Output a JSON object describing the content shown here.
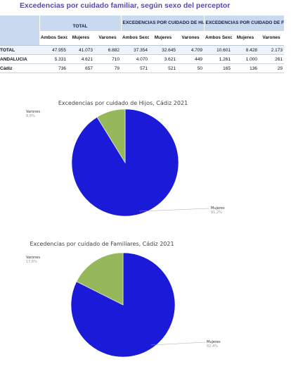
{
  "page_title": "Excedencias por cuidado familiar,  según sexo del perceptor",
  "table": {
    "groups": [
      "TOTAL",
      "EXCEDENCIAS POR CUIDADO DE HIJOS",
      "EXCEDENCIAS POR CUIDADO DE FAMILIARES"
    ],
    "subheaders": [
      "Ambos Sexos",
      "Mujeres",
      "Varones",
      "Ambos Sexos",
      "Mujeres",
      "Varones",
      "Ambos Sexos",
      "Mujeres",
      "Varones"
    ],
    "rows": [
      {
        "label": "TOTAL",
        "values": [
          "47.955",
          "41.073",
          "6.882",
          "37.354",
          "32.645",
          "4.709",
          "10.601",
          "8.428",
          "2.173"
        ]
      },
      {
        "label": "ANDALUCIA",
        "values": [
          "5.331",
          "4.621",
          "710",
          "4.070",
          "3.621",
          "449",
          "1.261",
          "1.000",
          "261"
        ]
      },
      {
        "label": "Cádiz",
        "values": [
          "736",
          "657",
          "79",
          "571",
          "521",
          "50",
          "165",
          "136",
          "29"
        ]
      }
    ]
  },
  "chart_data": [
    {
      "type": "pie",
      "title": "Excedencias por cuidado de Hijos, Cádiz 2021",
      "slices": [
        {
          "name": "Mujeres",
          "value": 91.2,
          "label": "91,2%",
          "color": "#1a1ad8"
        },
        {
          "name": "Varones",
          "value": 8.8,
          "label": "8,8%",
          "color": "#96b85a"
        }
      ]
    },
    {
      "type": "pie",
      "title": "Excedencias por cuidado de Familiares, Cádiz 2021",
      "slices": [
        {
          "name": "Mujeres",
          "value": 82.4,
          "label": "82,4%",
          "color": "#1a1ad8"
        },
        {
          "name": "Varones",
          "value": 17.6,
          "label": "17,6%",
          "color": "#96b85a"
        }
      ]
    }
  ]
}
